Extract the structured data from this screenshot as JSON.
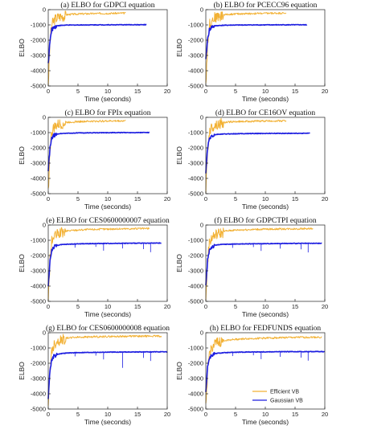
{
  "colors": {
    "efficient": "#f2b134",
    "gaussian": "#1d1ee0",
    "axis": "#222222",
    "background": "#ffffff"
  },
  "legend": {
    "position": "bottom-right",
    "entries": [
      "Efficient VB",
      "Gaussian VB"
    ]
  },
  "chart_data": [
    {
      "type": "line",
      "title": "(a) ELBO for GDPCI equation",
      "xlabel": "Time (seconds)",
      "ylabel": "ELBO",
      "xlim": [
        0,
        20
      ],
      "ylim": [
        -5000,
        0
      ],
      "xticks": [
        "0",
        "5",
        "10",
        "15",
        "20"
      ],
      "yticks": [
        "0",
        "-1000",
        "-2000",
        "-3000",
        "-4000",
        "-5000"
      ],
      "series": [
        {
          "name": "Efficient VB",
          "x": [
            0,
            0.3,
            0.6,
            1,
            1.5,
            2,
            3,
            4,
            5,
            7,
            9,
            11,
            13
          ],
          "y": [
            -4800,
            -2000,
            -900,
            -600,
            -450,
            -380,
            -320,
            -290,
            -270,
            -250,
            -235,
            -225,
            -220
          ]
        },
        {
          "name": "Gaussian VB",
          "x": [
            0,
            0.3,
            0.6,
            1,
            1.5,
            2,
            3,
            5,
            7,
            10,
            13,
            16.5
          ],
          "y": [
            -3500,
            -2000,
            -1300,
            -1100,
            -1050,
            -1030,
            -1010,
            -1000,
            -995,
            -990,
            -985,
            -985
          ]
        }
      ]
    },
    {
      "type": "line",
      "title": "(b) ELBO for PCECC96 equation",
      "xlabel": "Time (seconds)",
      "ylabel": "ELBO",
      "xlim": [
        0,
        20
      ],
      "ylim": [
        -5000,
        0
      ],
      "xticks": [
        "0",
        "5",
        "10",
        "15",
        "20"
      ],
      "yticks": [
        "0",
        "-1000",
        "-2000",
        "-3000",
        "-4000",
        "-5000"
      ],
      "series": [
        {
          "name": "Efficient VB",
          "x": [
            0,
            0.3,
            0.6,
            1,
            1.5,
            2,
            3,
            4,
            5,
            7,
            9,
            11,
            13.5
          ],
          "y": [
            -4800,
            -2200,
            -900,
            -600,
            -450,
            -380,
            -320,
            -290,
            -270,
            -250,
            -235,
            -225,
            -215
          ]
        },
        {
          "name": "Gaussian VB",
          "x": [
            0,
            0.3,
            0.6,
            1,
            1.5,
            2,
            3,
            5,
            7,
            10,
            13,
            17
          ],
          "y": [
            -3300,
            -1900,
            -1300,
            -1100,
            -1060,
            -1040,
            -1020,
            -1005,
            -1000,
            -995,
            -990,
            -990
          ]
        }
      ]
    },
    {
      "type": "line",
      "title": "(c) ELBO for FPIx equation",
      "xlabel": "Time (seconds)",
      "ylabel": "ELBO",
      "xlim": [
        0,
        20
      ],
      "ylim": [
        -5000,
        0
      ],
      "xticks": [
        "0",
        "5",
        "10",
        "15",
        "20"
      ],
      "yticks": [
        "0",
        "-1000",
        "-2000",
        "-3000",
        "-4000",
        "-5000"
      ],
      "series": [
        {
          "name": "Efficient VB",
          "x": [
            0,
            0.3,
            0.6,
            1,
            1.5,
            2,
            3,
            4,
            5,
            7,
            9,
            11,
            13
          ],
          "y": [
            -4800,
            -2000,
            -900,
            -600,
            -450,
            -380,
            -320,
            -290,
            -270,
            -250,
            -235,
            -225,
            -220
          ]
        },
        {
          "name": "Gaussian VB",
          "x": [
            0,
            0.3,
            0.6,
            1,
            1.5,
            2,
            3,
            5,
            7,
            10,
            13,
            17
          ],
          "y": [
            -3400,
            -2000,
            -1350,
            -1150,
            -1090,
            -1060,
            -1040,
            -1020,
            -1010,
            -1000,
            -995,
            -990
          ]
        }
      ]
    },
    {
      "type": "line",
      "title": "(d) ELBO for CE16OV equation",
      "xlabel": "Time (seconds)",
      "ylabel": "ELBO",
      "xlim": [
        0,
        20
      ],
      "ylim": [
        -5000,
        0
      ],
      "xticks": [
        "0",
        "5",
        "10",
        "15",
        "20"
      ],
      "yticks": [
        "0",
        "-1000",
        "-2000",
        "-3000",
        "-4000",
        "-5000"
      ],
      "series": [
        {
          "name": "Efficient VB",
          "x": [
            0,
            0.3,
            0.6,
            1,
            1.5,
            2,
            3,
            4,
            5,
            7,
            9,
            11,
            13.5
          ],
          "y": [
            -4800,
            -2100,
            -900,
            -600,
            -450,
            -380,
            -320,
            -290,
            -270,
            -250,
            -235,
            -225,
            -220
          ]
        },
        {
          "name": "Gaussian VB",
          "x": [
            0,
            0.3,
            0.6,
            1,
            1.5,
            2,
            3,
            5,
            7,
            10,
            13,
            17.5
          ],
          "y": [
            -3600,
            -2000,
            -1400,
            -1200,
            -1140,
            -1110,
            -1090,
            -1070,
            -1060,
            -1050,
            -1045,
            -1040
          ]
        }
      ]
    },
    {
      "type": "line",
      "title": "(e) ELBO for CES0600000007 equation",
      "xlabel": "Time (seconds)",
      "ylabel": "ELBO",
      "xlim": [
        0,
        20
      ],
      "ylim": [
        -5000,
        0
      ],
      "xticks": [
        "0",
        "5",
        "10",
        "15",
        "20"
      ],
      "yticks": [
        "0",
        "-1000",
        "-2000",
        "-3000",
        "-4000",
        "-5000"
      ],
      "series": [
        {
          "name": "Efficient VB",
          "x": [
            0,
            0.3,
            0.6,
            1,
            1.5,
            2,
            3,
            4,
            5,
            7,
            9,
            12,
            15,
            17
          ],
          "y": [
            -4900,
            -2200,
            -1000,
            -700,
            -550,
            -460,
            -380,
            -340,
            -310,
            -280,
            -260,
            -240,
            -225,
            -220
          ]
        },
        {
          "name": "Gaussian VB",
          "x": [
            0,
            0.3,
            0.6,
            1,
            1.5,
            2,
            3,
            5,
            7,
            10,
            13,
            16,
            19
          ],
          "y": [
            -4000,
            -2300,
            -1600,
            -1400,
            -1330,
            -1290,
            -1260,
            -1230,
            -1215,
            -1200,
            -1190,
            -1185,
            -1180
          ]
        }
      ]
    },
    {
      "type": "line",
      "title": "(f) ELBO for GDPCTPI equation",
      "xlabel": "Time (seconds)",
      "ylabel": "ELBO",
      "xlim": [
        0,
        20
      ],
      "ylim": [
        -5000,
        0
      ],
      "xticks": [
        "0",
        "5",
        "10",
        "15",
        "20"
      ],
      "yticks": [
        "0",
        "-1000",
        "-2000",
        "-3000",
        "-4000",
        "-5000"
      ],
      "series": [
        {
          "name": "Efficient VB",
          "x": [
            0,
            0.3,
            0.6,
            1,
            1.5,
            2,
            3,
            4,
            5,
            7,
            9,
            12,
            15,
            18
          ],
          "y": [
            -4900,
            -2300,
            -1100,
            -750,
            -600,
            -500,
            -400,
            -350,
            -320,
            -290,
            -270,
            -250,
            -235,
            -225
          ]
        },
        {
          "name": "Gaussian VB",
          "x": [
            0,
            0.3,
            0.6,
            1,
            1.5,
            2,
            3,
            5,
            7,
            10,
            13,
            16,
            19.5
          ],
          "y": [
            -4000,
            -2300,
            -1600,
            -1400,
            -1330,
            -1290,
            -1260,
            -1240,
            -1230,
            -1215,
            -1205,
            -1200,
            -1195
          ]
        }
      ]
    },
    {
      "type": "line",
      "title": "(g) ELBO for CES0600000008 equation",
      "xlabel": "Time (seconds)",
      "ylabel": "ELBO",
      "xlim": [
        0,
        20
      ],
      "ylim": [
        -5000,
        0
      ],
      "xticks": [
        "0",
        "5",
        "10",
        "15",
        "20"
      ],
      "yticks": [
        "0",
        "-1000",
        "-2000",
        "-3000",
        "-4000",
        "-5000"
      ],
      "series": [
        {
          "name": "Efficient VB",
          "x": [
            0,
            0.3,
            0.6,
            1,
            1.5,
            2,
            3,
            4,
            5,
            7,
            10,
            13,
            16,
            19
          ],
          "y": [
            -4900,
            -2300,
            -1100,
            -700,
            -500,
            -420,
            -340,
            -300,
            -280,
            -260,
            -240,
            -225,
            -215,
            -210
          ]
        },
        {
          "name": "Gaussian VB",
          "x": [
            0,
            0.3,
            0.6,
            1,
            1.5,
            2,
            3,
            5,
            7,
            10,
            13,
            16,
            20
          ],
          "y": [
            -4200,
            -2400,
            -1700,
            -1500,
            -1420,
            -1370,
            -1330,
            -1300,
            -1285,
            -1270,
            -1260,
            -1255,
            -1250
          ]
        }
      ]
    },
    {
      "type": "line",
      "title": "(h) ELBO for FEDFUNDS equation",
      "xlabel": "Time (seconds)",
      "ylabel": "ELBO",
      "xlim": [
        0,
        20
      ],
      "ylim": [
        -5000,
        0
      ],
      "xticks": [
        "0",
        "5",
        "10",
        "15",
        "20"
      ],
      "yticks": [
        "0",
        "-1000",
        "-2000",
        "-3000",
        "-4000",
        "-5000"
      ],
      "series": [
        {
          "name": "Efficient VB",
          "x": [
            0,
            0.3,
            0.6,
            1,
            1.5,
            2,
            3,
            4,
            5,
            7,
            10,
            13,
            16,
            19.5
          ],
          "y": [
            -4900,
            -2500,
            -1300,
            -900,
            -700,
            -600,
            -500,
            -450,
            -420,
            -380,
            -340,
            -310,
            -290,
            -280
          ]
        },
        {
          "name": "Gaussian VB",
          "x": [
            0,
            0.3,
            0.6,
            1,
            1.5,
            2,
            3,
            5,
            7,
            10,
            13,
            16,
            20
          ],
          "y": [
            -3800,
            -2200,
            -1650,
            -1450,
            -1380,
            -1340,
            -1310,
            -1280,
            -1260,
            -1250,
            -1240,
            -1235,
            -1230
          ]
        }
      ]
    }
  ]
}
